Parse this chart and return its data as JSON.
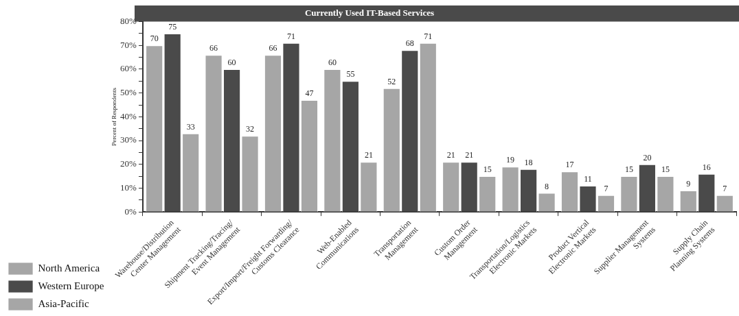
{
  "chart_data": {
    "type": "bar",
    "title": "Currently Used IT-Based Services",
    "ylabel": "Percent of Respondents",
    "categories": [
      "Warehouse/Distribution\nCenter Management",
      "Shipment Tracking/Tracing/\nEvent Management",
      "Export/Import/Freight Forwarding/\nCustoms Clearance",
      "Web-Enabled\nCommunications",
      "Transportation\nManagement",
      "Custom Order\nManagement",
      "Transportation/Logistics\nElectronic Markets",
      "Product Vertical\nElectronic Markets",
      "Supplier Management\nSystems",
      "Supply Chain\nPlanning Systems"
    ],
    "series": [
      {
        "name": "North America",
        "color": "#a6a6a6",
        "values": [
          70,
          66,
          66,
          60,
          52,
          21,
          19,
          17,
          15,
          9
        ]
      },
      {
        "name": "Western Europe",
        "color": "#4a4a4a",
        "values": [
          75,
          60,
          71,
          55,
          68,
          21,
          18,
          11,
          20,
          16
        ]
      },
      {
        "name": "Asia-Pacific",
        "color": "#a6a6a6",
        "values": [
          33,
          32,
          47,
          21,
          71,
          15,
          8,
          7,
          15,
          7
        ]
      }
    ],
    "ylim": [
      0,
      80
    ],
    "yticks": [
      {
        "value": 0,
        "label": "0%"
      },
      {
        "value": 5,
        "label": null
      },
      {
        "value": 10,
        "label": "10%"
      },
      {
        "value": 15,
        "label": null
      },
      {
        "value": 20,
        "label": "20%"
      },
      {
        "value": 25,
        "label": null
      },
      {
        "value": 30,
        "label": "30%"
      },
      {
        "value": 35,
        "label": null
      },
      {
        "value": 40,
        "label": "40%"
      },
      {
        "value": 45,
        "label": null
      },
      {
        "value": 50,
        "label": "50%"
      },
      {
        "value": 55,
        "label": null
      },
      {
        "value": 60,
        "label": "60%"
      },
      {
        "value": 65,
        "label": null
      },
      {
        "value": 70,
        "label": "70%"
      },
      {
        "value": 75,
        "label": null
      },
      {
        "value": 80,
        "label": "80%"
      }
    ],
    "data_labels": true,
    "grid": false,
    "legend": "bottom left"
  }
}
